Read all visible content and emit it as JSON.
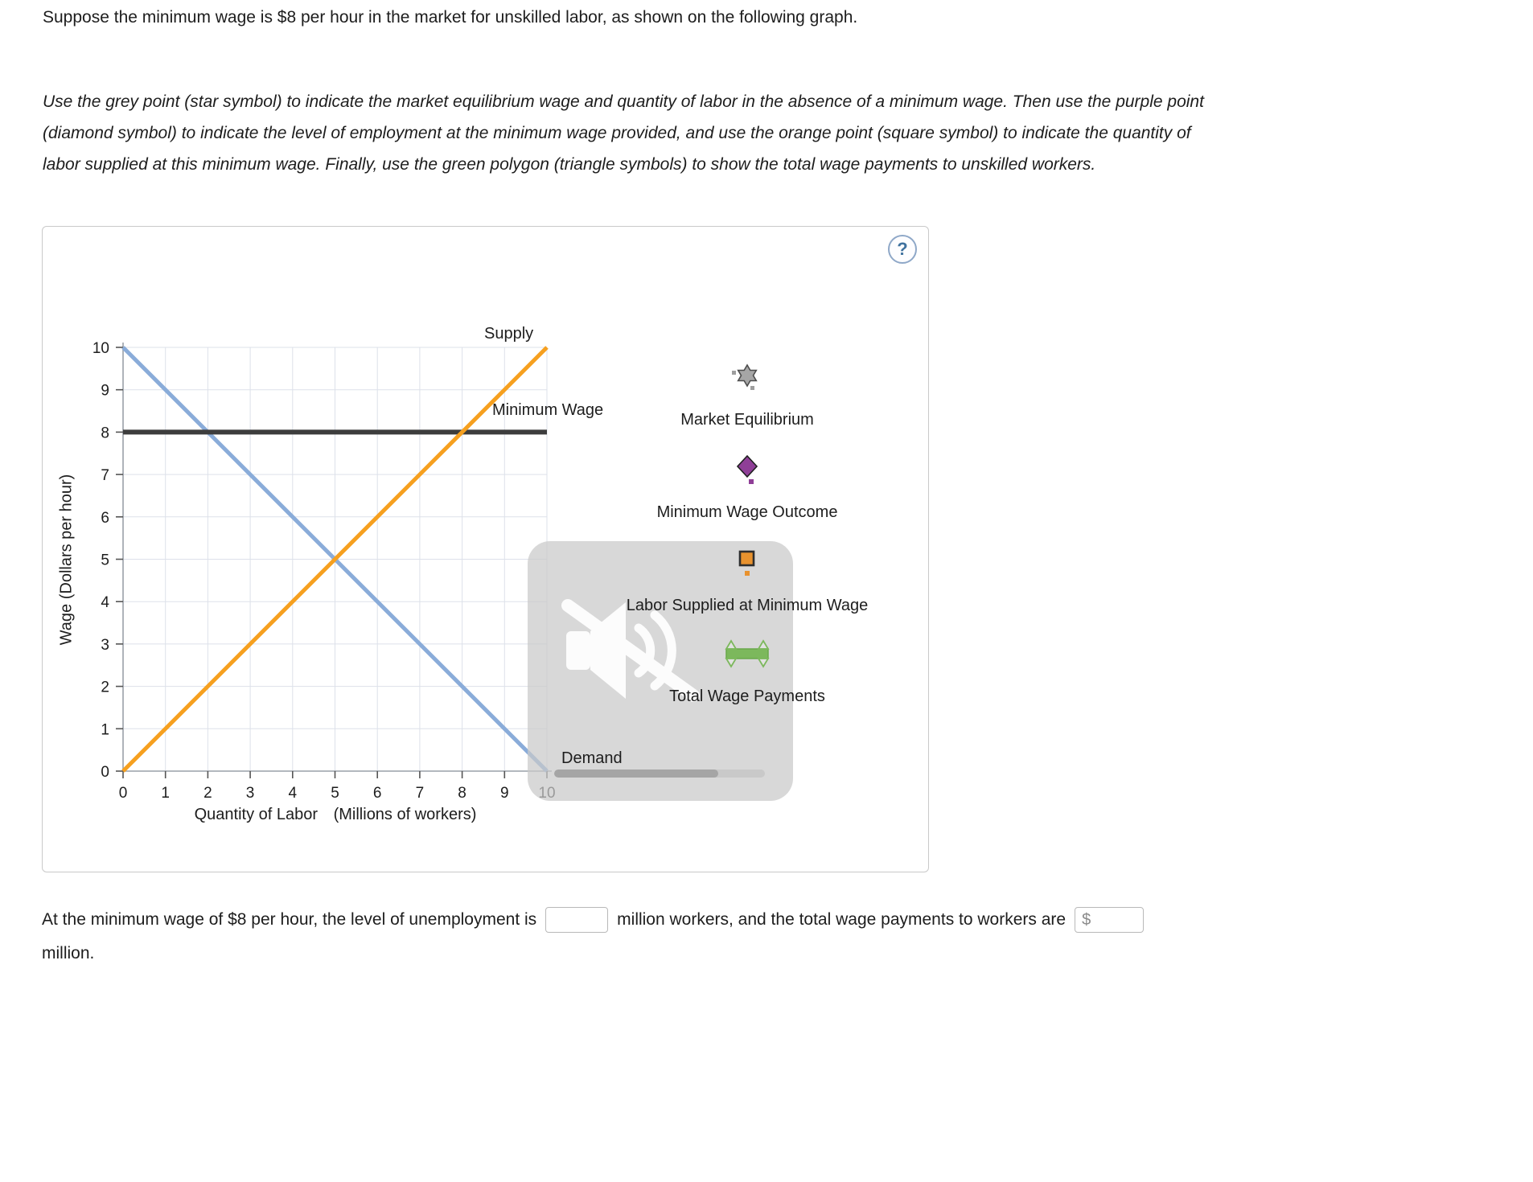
{
  "intro": "Suppose the minimum wage is $8 per hour in the market for unskilled labor, as shown on the following graph.",
  "instructions": "Use the grey point (star symbol) to indicate the market equilibrium wage and quantity of labor in the absence of a minimum wage. Then use the purple point (diamond symbol) to indicate the level of employment at the minimum wage provided, and use the orange point (square symbol) to indicate the quantity of labor supplied at this minimum wage. Finally, use the green polygon (triangle symbols) to show the total wage payments to unskilled workers.",
  "panel": {
    "help": "?"
  },
  "chart_data": {
    "type": "line",
    "title": "",
    "xlabel": "Quantity of Labor",
    "xlabel_units": "(Millions of workers)",
    "ylabel": "Wage (Dollars per hour)",
    "xlim": [
      0,
      10
    ],
    "ylim": [
      0,
      10
    ],
    "xticks": [
      0,
      1,
      2,
      3,
      4,
      5,
      6,
      7,
      8,
      9,
      10
    ],
    "yticks": [
      0,
      1,
      2,
      3,
      4,
      5,
      6,
      7,
      8,
      9,
      10
    ],
    "grid": true,
    "series": [
      {
        "name": "Demand",
        "label": "Demand",
        "color": "#8AACD9",
        "width": 5,
        "points": [
          [
            0,
            10
          ],
          [
            10,
            0
          ]
        ]
      },
      {
        "name": "Minimum Wage",
        "label": "Minimum Wage",
        "color": "#3D3D3D",
        "width": 6,
        "points": [
          [
            0,
            8
          ],
          [
            10,
            8
          ]
        ]
      },
      {
        "name": "Supply",
        "label": "Supply",
        "color": "#F6A01F",
        "width": 5,
        "points": [
          [
            0,
            0
          ],
          [
            10,
            10
          ]
        ]
      }
    ],
    "minimum_wage": 8,
    "equilibrium": {
      "quantity": 5,
      "wage": 5
    }
  },
  "legend": [
    {
      "label": "Market Equilibrium",
      "symbol": "star",
      "color": "#A6A6A6"
    },
    {
      "label": "Minimum Wage Outcome",
      "symbol": "diamond",
      "color": "#8F3F97"
    },
    {
      "label": "Labor Supplied at Minimum Wage",
      "symbol": "square",
      "color": "#E8922E"
    },
    {
      "label": "Total Wage Payments",
      "symbol": "triangle-polygon",
      "color": "#7CB85C"
    }
  ],
  "question": {
    "part1": "At the minimum wage of $8 per hour, the level of unemployment is",
    "input1_value": "",
    "part2": "million workers, and the total wage payments to workers are",
    "currency": "$",
    "input2_value": "",
    "part3": "million."
  }
}
